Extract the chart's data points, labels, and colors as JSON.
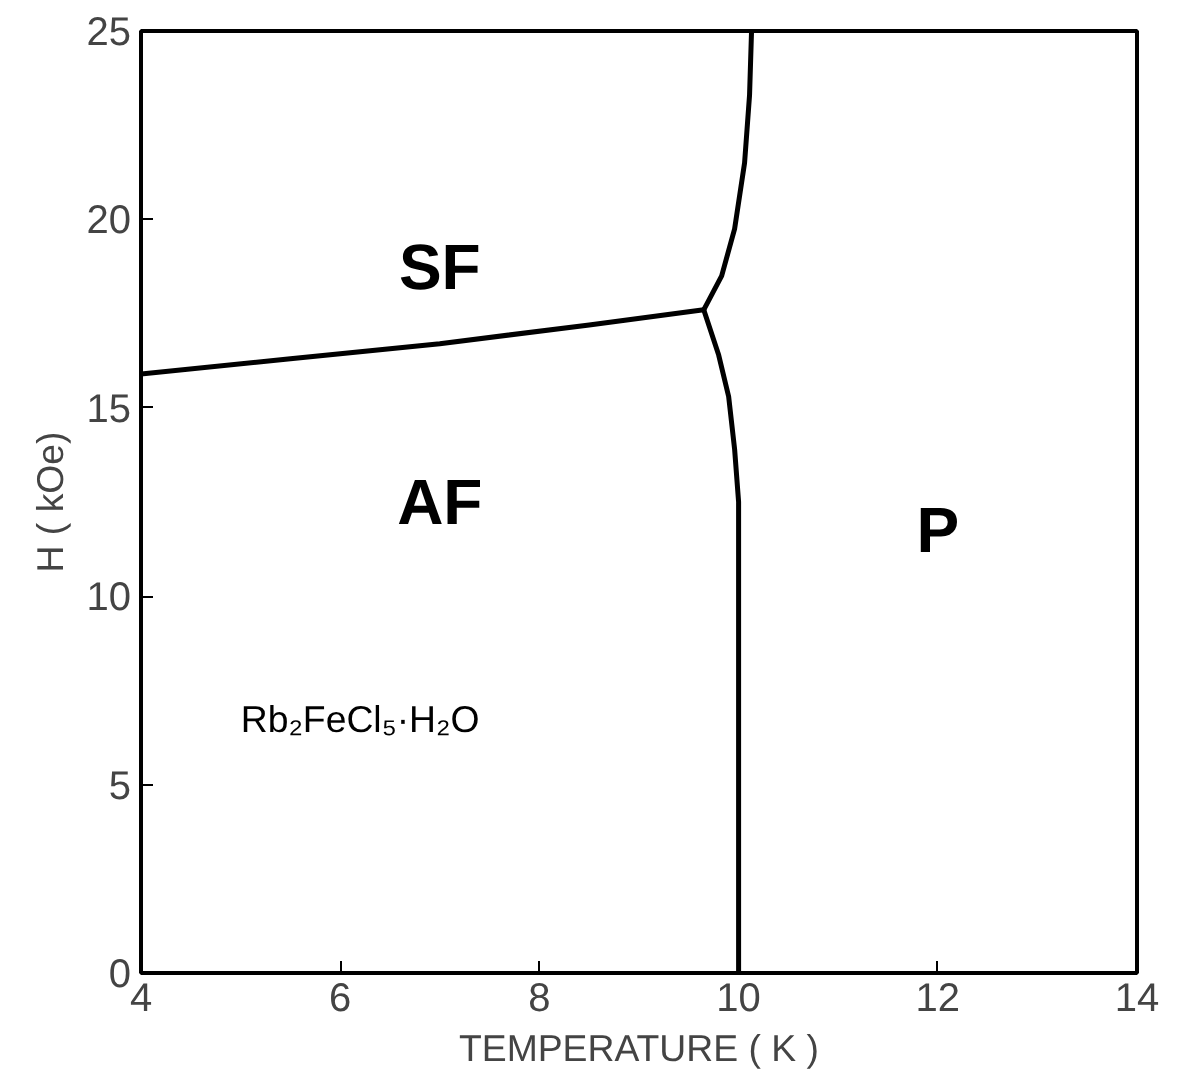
{
  "chart_data": {
    "type": "line",
    "xlabel": "TEMPERATURE ( K )",
    "ylabel": "H ( kOe)",
    "xlim": [
      4,
      14
    ],
    "ylim": [
      0,
      25
    ],
    "xticks": [
      4,
      6,
      8,
      10,
      12,
      14
    ],
    "yticks": [
      0,
      5,
      10,
      15,
      20,
      25
    ],
    "grid": false,
    "marker": "none",
    "line_style": "solid",
    "series": [
      {
        "color": "#000000",
        "x": [
          4,
          5.5,
          7,
          8.5,
          9.65
        ],
        "values": [
          15.9,
          16.3,
          16.7,
          17.2,
          17.6
        ]
      },
      {
        "color": "#000000",
        "x": [
          9.65,
          9.83,
          9.96,
          10.06,
          10.11,
          10.13
        ],
        "values": [
          17.6,
          18.5,
          19.75,
          21.5,
          23.3,
          25
        ]
      },
      {
        "color": "#000000",
        "x": [
          9.65,
          9.8,
          9.9,
          9.96,
          10.0,
          10.0,
          10.0
        ],
        "values": [
          17.6,
          16.4,
          15.3,
          13.9,
          12.5,
          10.0,
          0
        ]
      }
    ],
    "annotations": [
      "SF",
      "AF",
      "P",
      "Rb₂FeCl₅·H₂O"
    ]
  }
}
